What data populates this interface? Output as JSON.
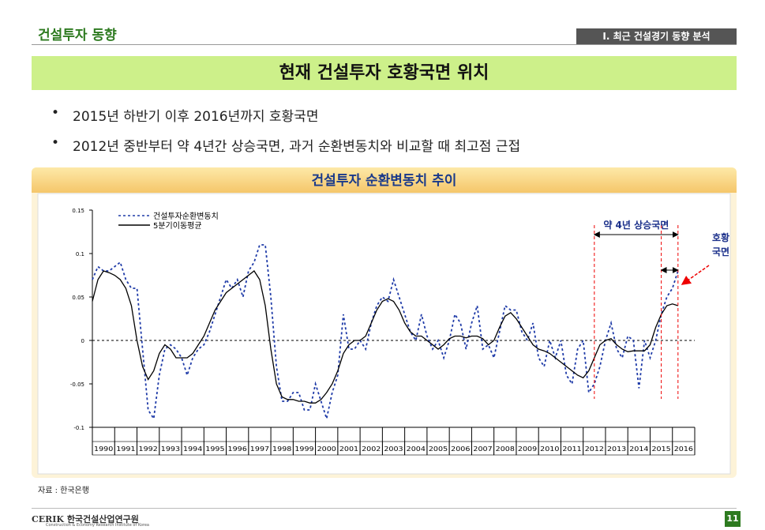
{
  "header": {
    "section": "건설투자 동향",
    "chapter": "Ⅰ. 최근 건설경기 동향 분석"
  },
  "headline": "현재 건설투자 호황국면 위치",
  "bullets": [
    "2015년 하반기 이후 2016년까지 호황국면",
    "2012년 중반부터 약 4년간 상승국면, 과거 순환변동치와 비교할 때 최고점 근접"
  ],
  "chart_data": {
    "type": "line",
    "title": "건설투자 순환변동치 추이",
    "x": [
      1990,
      1990.25,
      1990.5,
      1990.75,
      1991,
      1991.25,
      1991.5,
      1991.75,
      1992,
      1992.25,
      1992.5,
      1992.75,
      1993,
      1993.25,
      1993.5,
      1993.75,
      1994,
      1994.25,
      1994.5,
      1994.75,
      1995,
      1995.25,
      1995.5,
      1995.75,
      1996,
      1996.25,
      1996.5,
      1996.75,
      1997,
      1997.25,
      1997.5,
      1997.75,
      1998,
      1998.25,
      1998.5,
      1998.75,
      1999,
      1999.25,
      1999.5,
      1999.75,
      2000,
      2000.25,
      2000.5,
      2000.75,
      2001,
      2001.25,
      2001.5,
      2001.75,
      2002,
      2002.25,
      2002.5,
      2002.75,
      2003,
      2003.25,
      2003.5,
      2003.75,
      2004,
      2004.25,
      2004.5,
      2004.75,
      2005,
      2005.25,
      2005.5,
      2005.75,
      2006,
      2006.25,
      2006.5,
      2006.75,
      2007,
      2007.25,
      2007.5,
      2007.75,
      2008,
      2008.25,
      2008.5,
      2008.75,
      2009,
      2009.25,
      2009.5,
      2009.75,
      2010,
      2010.25,
      2010.5,
      2010.75,
      2011,
      2011.25,
      2011.5,
      2011.75,
      2012,
      2012.25,
      2012.5,
      2012.75,
      2013,
      2013.25,
      2013.5,
      2013.75,
      2014,
      2014.25,
      2014.5,
      2014.75,
      2015,
      2015.25,
      2015.5,
      2015.75,
      2016,
      2016.25
    ],
    "series": [
      {
        "name": "건설투자순환변동치",
        "color": "#1f3ba8",
        "dash": true,
        "values": [
          0.07,
          0.085,
          0.08,
          0.08,
          0.085,
          0.09,
          0.07,
          0.06,
          0.06,
          -0.01,
          -0.08,
          -0.09,
          -0.04,
          -0.01,
          -0.005,
          -0.01,
          -0.02,
          -0.04,
          -0.02,
          -0.01,
          -0.005,
          0.01,
          0.03,
          0.05,
          0.07,
          0.06,
          0.07,
          0.05,
          0.08,
          0.09,
          0.11,
          0.11,
          0.05,
          -0.03,
          -0.07,
          -0.07,
          -0.06,
          -0.06,
          -0.08,
          -0.08,
          -0.05,
          -0.07,
          -0.09,
          -0.06,
          -0.04,
          0.03,
          -0.01,
          -0.01,
          0,
          -0.01,
          0.02,
          0.04,
          0.05,
          0.045,
          0.07,
          0.05,
          0.03,
          0.01,
          0,
          0.03,
          0.005,
          -0.01,
          0,
          -0.02,
          0,
          0.03,
          0.02,
          -0.01,
          0.02,
          0.04,
          -0.01,
          -0.005,
          -0.02,
          0.01,
          0.04,
          0.035,
          0.035,
          0.01,
          0,
          0.02,
          -0.02,
          -0.03,
          0,
          -0.02,
          0,
          -0.04,
          -0.05,
          -0.01,
          0,
          -0.06,
          -0.05,
          -0.03,
          0,
          0.02,
          -0.01,
          -0.02,
          0.005,
          0,
          -0.055,
          0,
          -0.02,
          0,
          0.03,
          0.05,
          0.06,
          0.08
        ]
      },
      {
        "name": "5분기이동평균",
        "color": "#000000",
        "dash": false,
        "values": [
          0.045,
          0.07,
          0.08,
          0.078,
          0.075,
          0.07,
          0.06,
          0.04,
          0,
          -0.03,
          -0.045,
          -0.035,
          -0.015,
          -0.005,
          -0.01,
          -0.02,
          -0.02,
          -0.02,
          -0.015,
          -0.005,
          0.005,
          0.02,
          0.035,
          0.045,
          0.055,
          0.06,
          0.065,
          0.07,
          0.075,
          0.08,
          0.07,
          0.04,
          -0.01,
          -0.05,
          -0.065,
          -0.068,
          -0.068,
          -0.07,
          -0.07,
          -0.072,
          -0.072,
          -0.068,
          -0.06,
          -0.05,
          -0.035,
          -0.015,
          -0.005,
          0,
          0,
          0.005,
          0.02,
          0.035,
          0.045,
          0.048,
          0.045,
          0.035,
          0.02,
          0.01,
          0.005,
          0.005,
          0,
          -0.005,
          -0.01,
          -0.005,
          0.002,
          0.005,
          0.005,
          0.003,
          0.005,
          0.005,
          0.002,
          -0.005,
          0,
          0.015,
          0.028,
          0.032,
          0.025,
          0.015,
          0.005,
          -0.005,
          -0.01,
          -0.012,
          -0.015,
          -0.02,
          -0.025,
          -0.03,
          -0.035,
          -0.04,
          -0.043,
          -0.035,
          -0.02,
          -0.005,
          0,
          0.002,
          -0.005,
          -0.01,
          -0.013,
          -0.012,
          -0.012,
          -0.012,
          -0.005,
          0.015,
          0.03,
          0.04,
          0.042,
          0.04
        ]
      }
    ],
    "xlim": [
      1990,
      2017
    ],
    "xticks": [
      1990,
      1991,
      1992,
      1993,
      1994,
      1995,
      1996,
      1997,
      1998,
      1999,
      2000,
      2001,
      2002,
      2003,
      2004,
      2005,
      2006,
      2007,
      2008,
      2009,
      2010,
      2011,
      2012,
      2013,
      2014,
      2015,
      2016
    ],
    "ylim": [
      -0.1,
      0.15
    ],
    "yticks": [
      0.15,
      0.1,
      0.05,
      0,
      -0.05,
      -0.1
    ],
    "annotations": [
      {
        "text": "약 4년 상승국면",
        "x": [
          2012.5,
          2016.25
        ]
      },
      {
        "text": [
          "호황",
          "국면"
        ],
        "x": [
          2015.5,
          2016.25
        ]
      }
    ]
  },
  "source": "자료 : 한국은행",
  "footer": {
    "org": "CERIK 한국건설산업연구원",
    "org_en": "Construction & Economy Research Institute of Korea",
    "page": "11"
  }
}
